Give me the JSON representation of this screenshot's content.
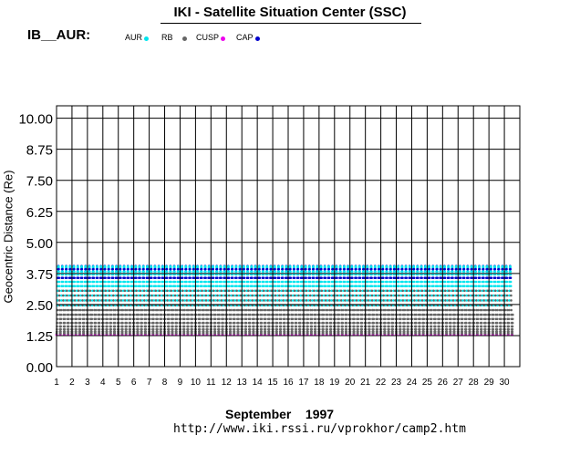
{
  "header": {
    "title": "IKI - Satellite Situation Center (SSC)",
    "plot_label": "IB__AUR:"
  },
  "footer": {
    "month": "September    1997",
    "url": "http://www.iki.rssi.ru/vprokhor/camp2.htm"
  },
  "legend": [
    {
      "label": "AUR",
      "color": "#00e5ee",
      "icon": "dot-icon"
    },
    {
      "label": "RB",
      "color": "#666666",
      "icon": "dot-icon"
    },
    {
      "label": "CUSP",
      "color": "#ee00ee",
      "icon": "dot-icon"
    },
    {
      "label": "CAP",
      "color": "#0000cc",
      "icon": "dot-icon"
    }
  ],
  "chart_data": {
    "type": "scatter",
    "title": "IKI - Satellite Situation Center (SSC)",
    "ylabel": "Geocentric Distance (Re)",
    "xlabel": "September 1997",
    "ylim": [
      0,
      10.5
    ],
    "xlim": [
      1,
      31
    ],
    "yticks": [
      "0.00",
      "1.25",
      "2.50",
      "3.75",
      "5.00",
      "6.25",
      "7.50",
      "8.75",
      "10.00"
    ],
    "xticks": [
      "1",
      "2",
      "3",
      "4",
      "5",
      "6",
      "7",
      "8",
      "9",
      "10",
      "11",
      "12",
      "13",
      "14",
      "15",
      "16",
      "17",
      "18",
      "19",
      "20",
      "21",
      "22",
      "23",
      "24",
      "25",
      "26",
      "27",
      "28",
      "29",
      "30"
    ],
    "grid": true,
    "orbit_model": {
      "perigee_re": 1.28,
      "apogee_re": 4.05,
      "orbits_per_day": 4
    },
    "series": [
      {
        "name": "AUR",
        "color": "#00e5ee",
        "range_re": [
          2.4,
          4.1
        ]
      },
      {
        "name": "RB",
        "color": "#666666",
        "range_re": [
          1.28,
          3.2
        ]
      },
      {
        "name": "CUSP",
        "color": "#ee00ee",
        "range_re": [
          1.28,
          4.0
        ]
      },
      {
        "name": "CAP",
        "color": "#0000cc",
        "range_re": [
          3.3,
          4.05
        ]
      }
    ]
  }
}
